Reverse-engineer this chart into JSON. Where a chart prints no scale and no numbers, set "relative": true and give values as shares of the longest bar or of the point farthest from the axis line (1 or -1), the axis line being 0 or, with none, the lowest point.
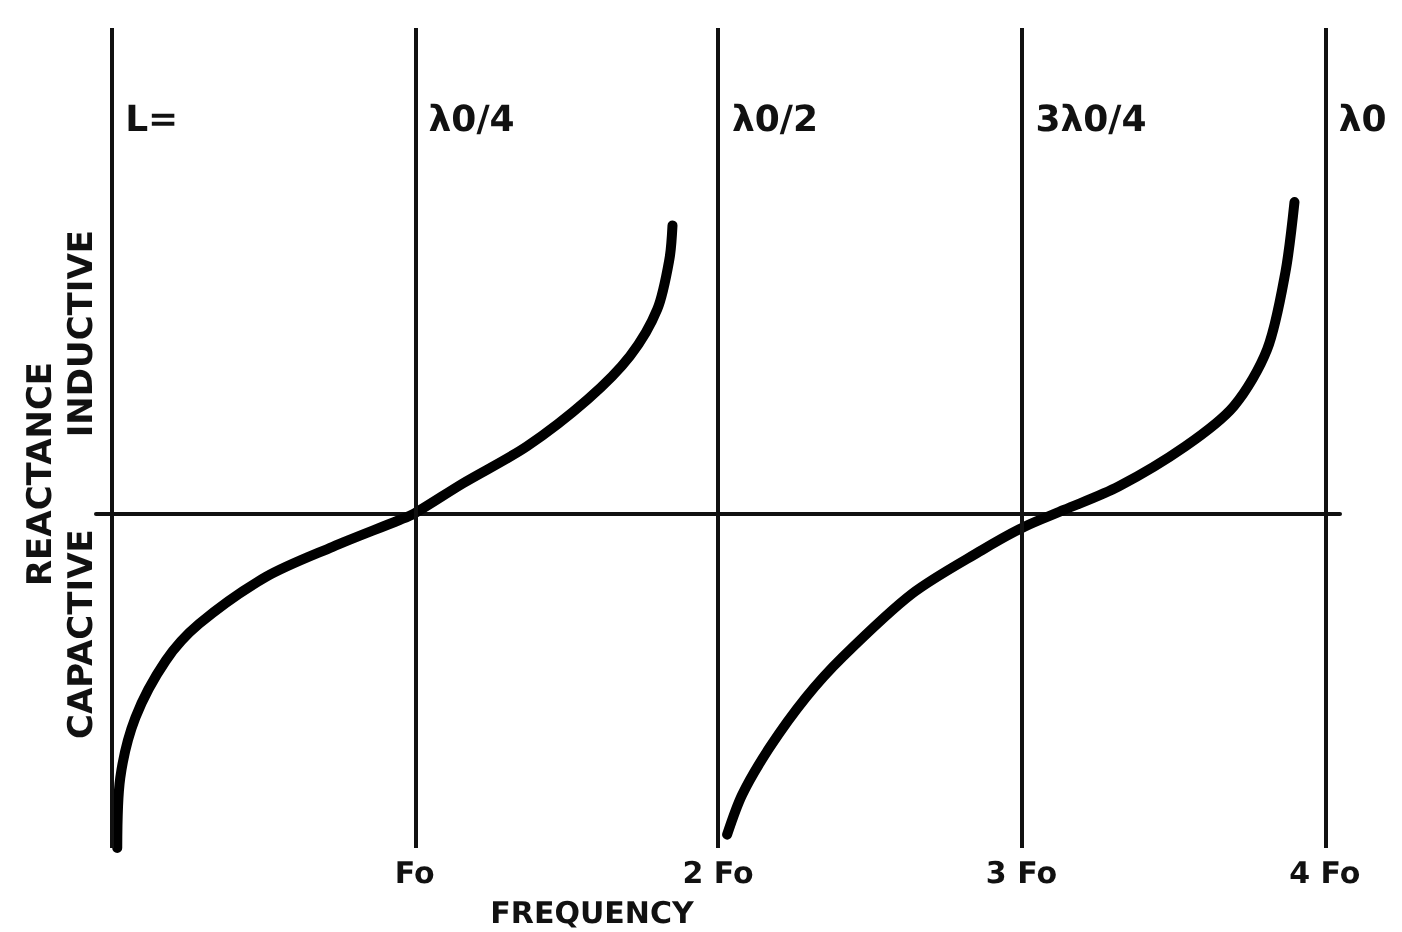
{
  "chart_data": {
    "type": "line",
    "relative": true,
    "xlabel": "FREQUENCY",
    "ylabel": "REACTANCE",
    "annotations": [
      "INDUCTIVE",
      "CAPACTIVE"
    ],
    "xlim": [
      -0.05,
      4.05
    ],
    "xticks": [
      {
        "value": 1,
        "label": "Fo"
      },
      {
        "value": 2,
        "label": "2 Fo"
      },
      {
        "value": 3,
        "label": "3 Fo"
      },
      {
        "value": 4,
        "label": "4 Fo"
      }
    ],
    "ref_lines": [
      {
        "axis": "x",
        "value": 0,
        "label": "L="
      },
      {
        "axis": "x",
        "value": 1,
        "label": "λ0/4"
      },
      {
        "axis": "x",
        "value": 2,
        "label": "λ0/2"
      },
      {
        "axis": "x",
        "value": 3,
        "label": "3λ0/4"
      },
      {
        "axis": "x",
        "value": 4,
        "label": "λ0"
      }
    ],
    "marker": "none",
    "series": [
      {
        "color": "#000000",
        "x": [
          0.02,
          0.03,
          0.08,
          0.18,
          0.29,
          0.51,
          0.73,
          0.95,
          1.0,
          1.16,
          1.37,
          1.57,
          1.71,
          1.8,
          1.84,
          1.85
        ],
        "values": [
          -1.0,
          -0.79,
          -0.61,
          -0.44,
          -0.33,
          -0.19,
          -0.1,
          -0.02,
          0,
          0.09,
          0.2,
          0.34,
          0.47,
          0.61,
          0.76,
          0.86
        ]
      },
      {
        "color": "#000000",
        "x": [
          2.03,
          2.08,
          2.17,
          2.29,
          2.41,
          2.64,
          2.87,
          3.01,
          3.14,
          3.32,
          3.54,
          3.7,
          3.81,
          3.87,
          3.9
        ],
        "values": [
          -0.96,
          -0.84,
          -0.7,
          -0.55,
          -0.43,
          -0.24,
          -0.11,
          -0.04,
          0.01,
          0.08,
          0.2,
          0.32,
          0.49,
          0.72,
          0.93
        ]
      }
    ]
  }
}
